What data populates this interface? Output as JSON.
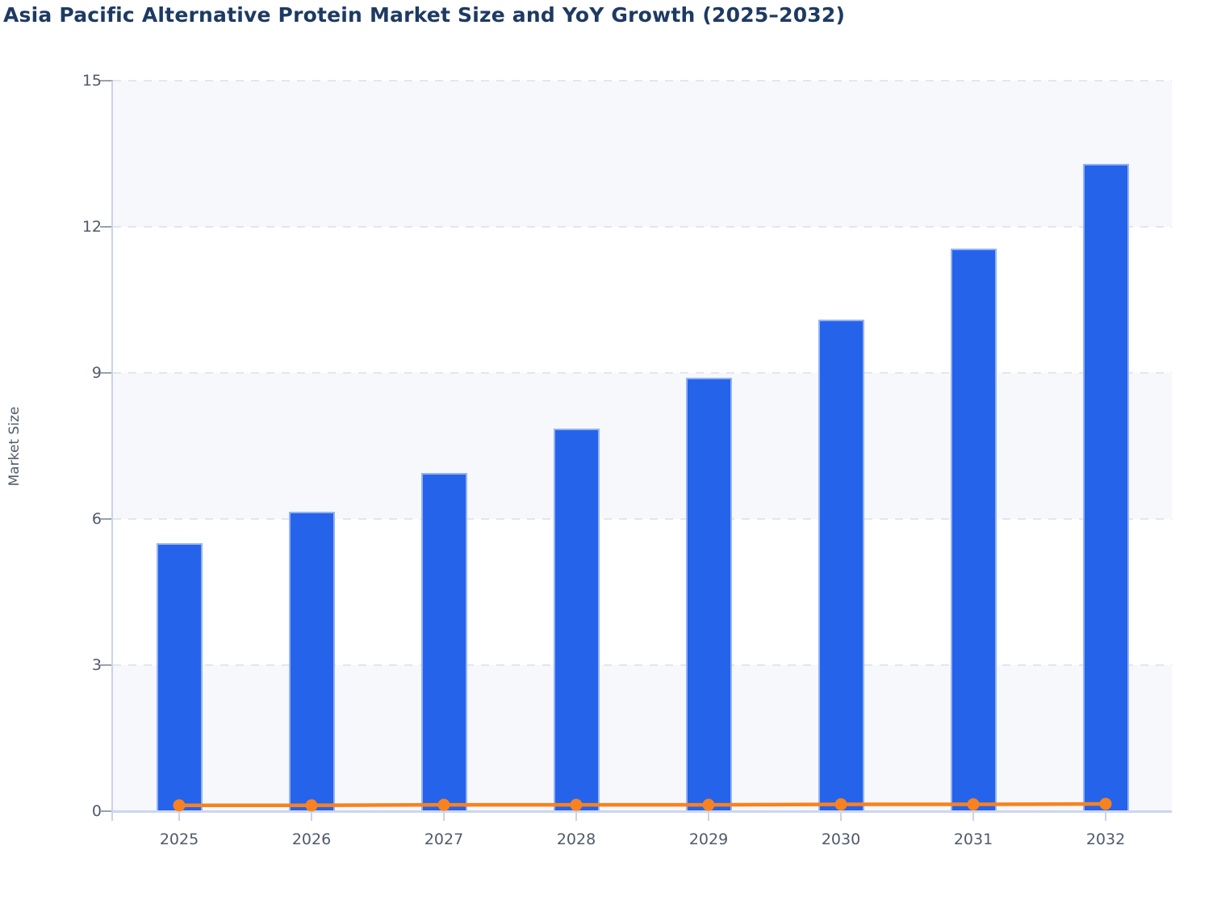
{
  "title": "Asia Pacific Alternative Protein Market Size and YoY Growth (2025–2032)",
  "chart_data": {
    "type": "bar",
    "categories": [
      "2025",
      "2026",
      "2027",
      "2028",
      "2029",
      "2030",
      "2031",
      "2032"
    ],
    "series": [
      {
        "name": "Market Size",
        "type": "bar",
        "color": "#2563eb",
        "values": [
          5.5,
          6.15,
          6.95,
          7.85,
          8.9,
          10.1,
          11.55,
          13.3
        ]
      },
      {
        "name": "YoY Growth",
        "type": "line",
        "color": "#f8821f",
        "values": [
          0.12,
          0.12,
          0.13,
          0.13,
          0.13,
          0.14,
          0.14,
          0.15
        ]
      }
    ],
    "xlabel": "",
    "ylabel": "Market Size",
    "ylim": [
      0,
      15
    ],
    "yticks": [
      0,
      3,
      6,
      9,
      12,
      15
    ],
    "grid": "horizontal-dashed",
    "legend_position": "none",
    "plot_bands_alternating": true,
    "colors": {
      "title": "#1d3a63",
      "axis_text": "#4f5a6a",
      "bar_fill": "#2563eb",
      "bar_border": "#94b3f2",
      "line": "#f8821f",
      "band": "#f7f8fb",
      "gridline": "#e3e6eb",
      "axis_line": "#c9d3ec",
      "baseline": "#ccd6ee",
      "ytick_mark": "#9aa1ae"
    }
  }
}
